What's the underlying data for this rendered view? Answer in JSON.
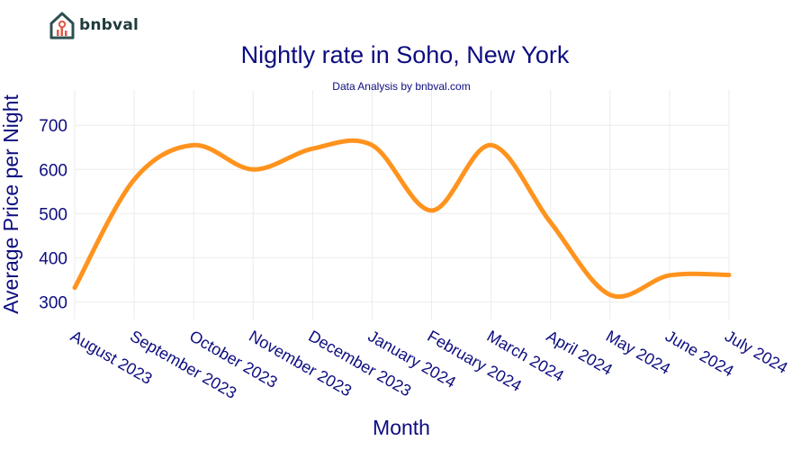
{
  "brand": {
    "name": "bnbval"
  },
  "chart_data": {
    "type": "line",
    "title": "Nightly rate in Soho, New York",
    "subtitle": "Data Analysis by bnbval.com",
    "xlabel": "Month",
    "ylabel": "Average Price per Night",
    "categories": [
      "August 2023",
      "September 2023",
      "October 2023",
      "November 2023",
      "December 2023",
      "January 2024",
      "February 2024",
      "March 2024",
      "April 2024",
      "May 2024",
      "June 2024",
      "July 2024"
    ],
    "series": [
      {
        "name": "Average Price per Night",
        "values": [
          332,
          577,
          655,
          600,
          647,
          655,
          507,
          655,
          480,
          316,
          360,
          361
        ]
      }
    ],
    "yticks": [
      300,
      400,
      500,
      600,
      700
    ],
    "ylim": [
      260,
      780
    ],
    "grid": true,
    "legend": "none",
    "line_color": "#ff931e"
  }
}
